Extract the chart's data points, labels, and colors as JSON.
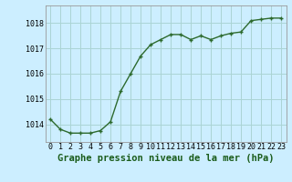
{
  "x": [
    0,
    1,
    2,
    3,
    4,
    5,
    6,
    7,
    8,
    9,
    10,
    11,
    12,
    13,
    14,
    15,
    16,
    17,
    18,
    19,
    20,
    21,
    22,
    23
  ],
  "y": [
    1014.2,
    1013.8,
    1013.65,
    1013.65,
    1013.65,
    1013.75,
    1014.1,
    1015.3,
    1016.0,
    1016.7,
    1017.15,
    1017.35,
    1017.55,
    1017.55,
    1017.35,
    1017.5,
    1017.35,
    1017.5,
    1017.6,
    1017.65,
    1018.1,
    1018.15,
    1018.2,
    1018.2
  ],
  "line_color": "#2d6a2d",
  "marker_color": "#2d6a2d",
  "bg_color": "#cceeff",
  "grid_color": "#aad4d4",
  "title": "Graphe pression niveau de la mer (hPa)",
  "ylabel_ticks": [
    1014,
    1015,
    1016,
    1017,
    1018
  ],
  "xlim": [
    -0.5,
    23.5
  ],
  "ylim": [
    1013.3,
    1018.7
  ],
  "title_fontsize": 7.5,
  "tick_fontsize": 6.0
}
